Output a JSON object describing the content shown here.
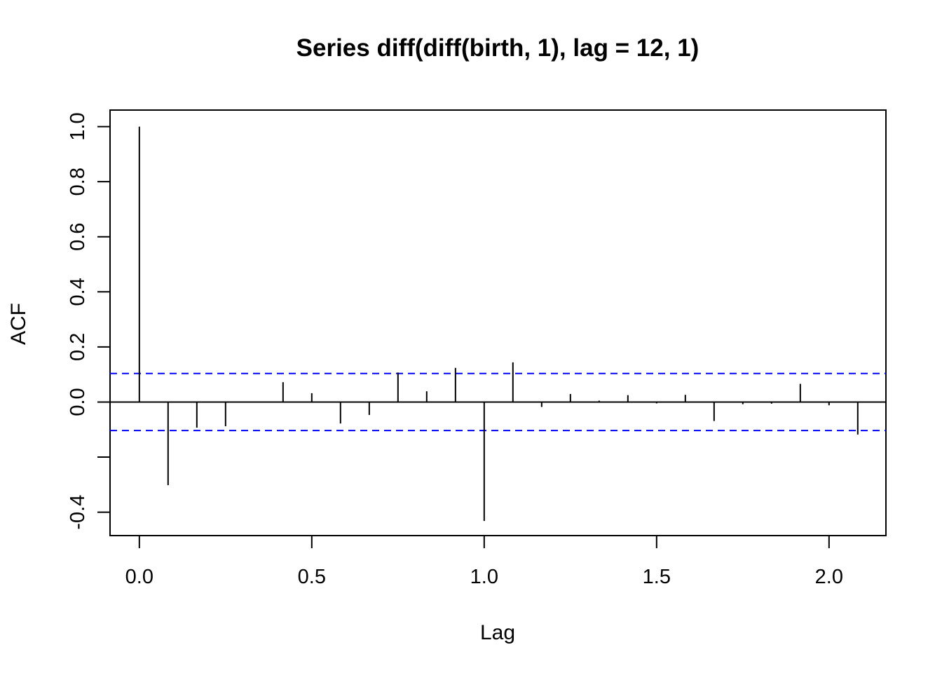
{
  "chart_data": {
    "type": "bar",
    "title": "Series  diff(diff(birth, 1), lag = 12, 1)",
    "xlabel": "Lag",
    "ylabel": "ACF",
    "xlim": [
      -0.085,
      2.165
    ],
    "ylim": [
      -0.485,
      1.06
    ],
    "x_ticks": [
      0.0,
      0.5,
      1.0,
      1.5,
      2.0
    ],
    "x_tick_labels": [
      "0.0",
      "0.5",
      "1.0",
      "1.5",
      "2.0"
    ],
    "y_ticks": [
      -0.4,
      -0.2,
      0.0,
      0.2,
      0.4,
      0.6,
      0.8,
      1.0
    ],
    "y_tick_labels": [
      "-0.4",
      "",
      "0.0",
      "0.2",
      "0.4",
      "0.6",
      "0.8",
      "1.0"
    ],
    "lags": [
      0.0,
      0.0833,
      0.1667,
      0.25,
      0.3333,
      0.4167,
      0.5,
      0.5833,
      0.6667,
      0.75,
      0.8333,
      0.9167,
      1.0,
      1.0833,
      1.1667,
      1.25,
      1.3333,
      1.4167,
      1.5,
      1.5833,
      1.6667,
      1.75,
      1.8333,
      1.9167,
      2.0,
      2.0833
    ],
    "acf": [
      1.0,
      -0.302,
      -0.093,
      -0.088,
      0.0,
      0.072,
      0.032,
      -0.078,
      -0.047,
      0.107,
      0.039,
      0.124,
      -0.432,
      0.144,
      -0.018,
      0.029,
      0.005,
      0.025,
      -0.005,
      0.026,
      -0.069,
      -0.008,
      -0.006,
      0.066,
      -0.012,
      -0.118
    ],
    "confidence_bound": 0.1035,
    "grid": false,
    "colors": {
      "bars": "#000000",
      "ci": "#0000ff",
      "axes": "#000000"
    }
  }
}
